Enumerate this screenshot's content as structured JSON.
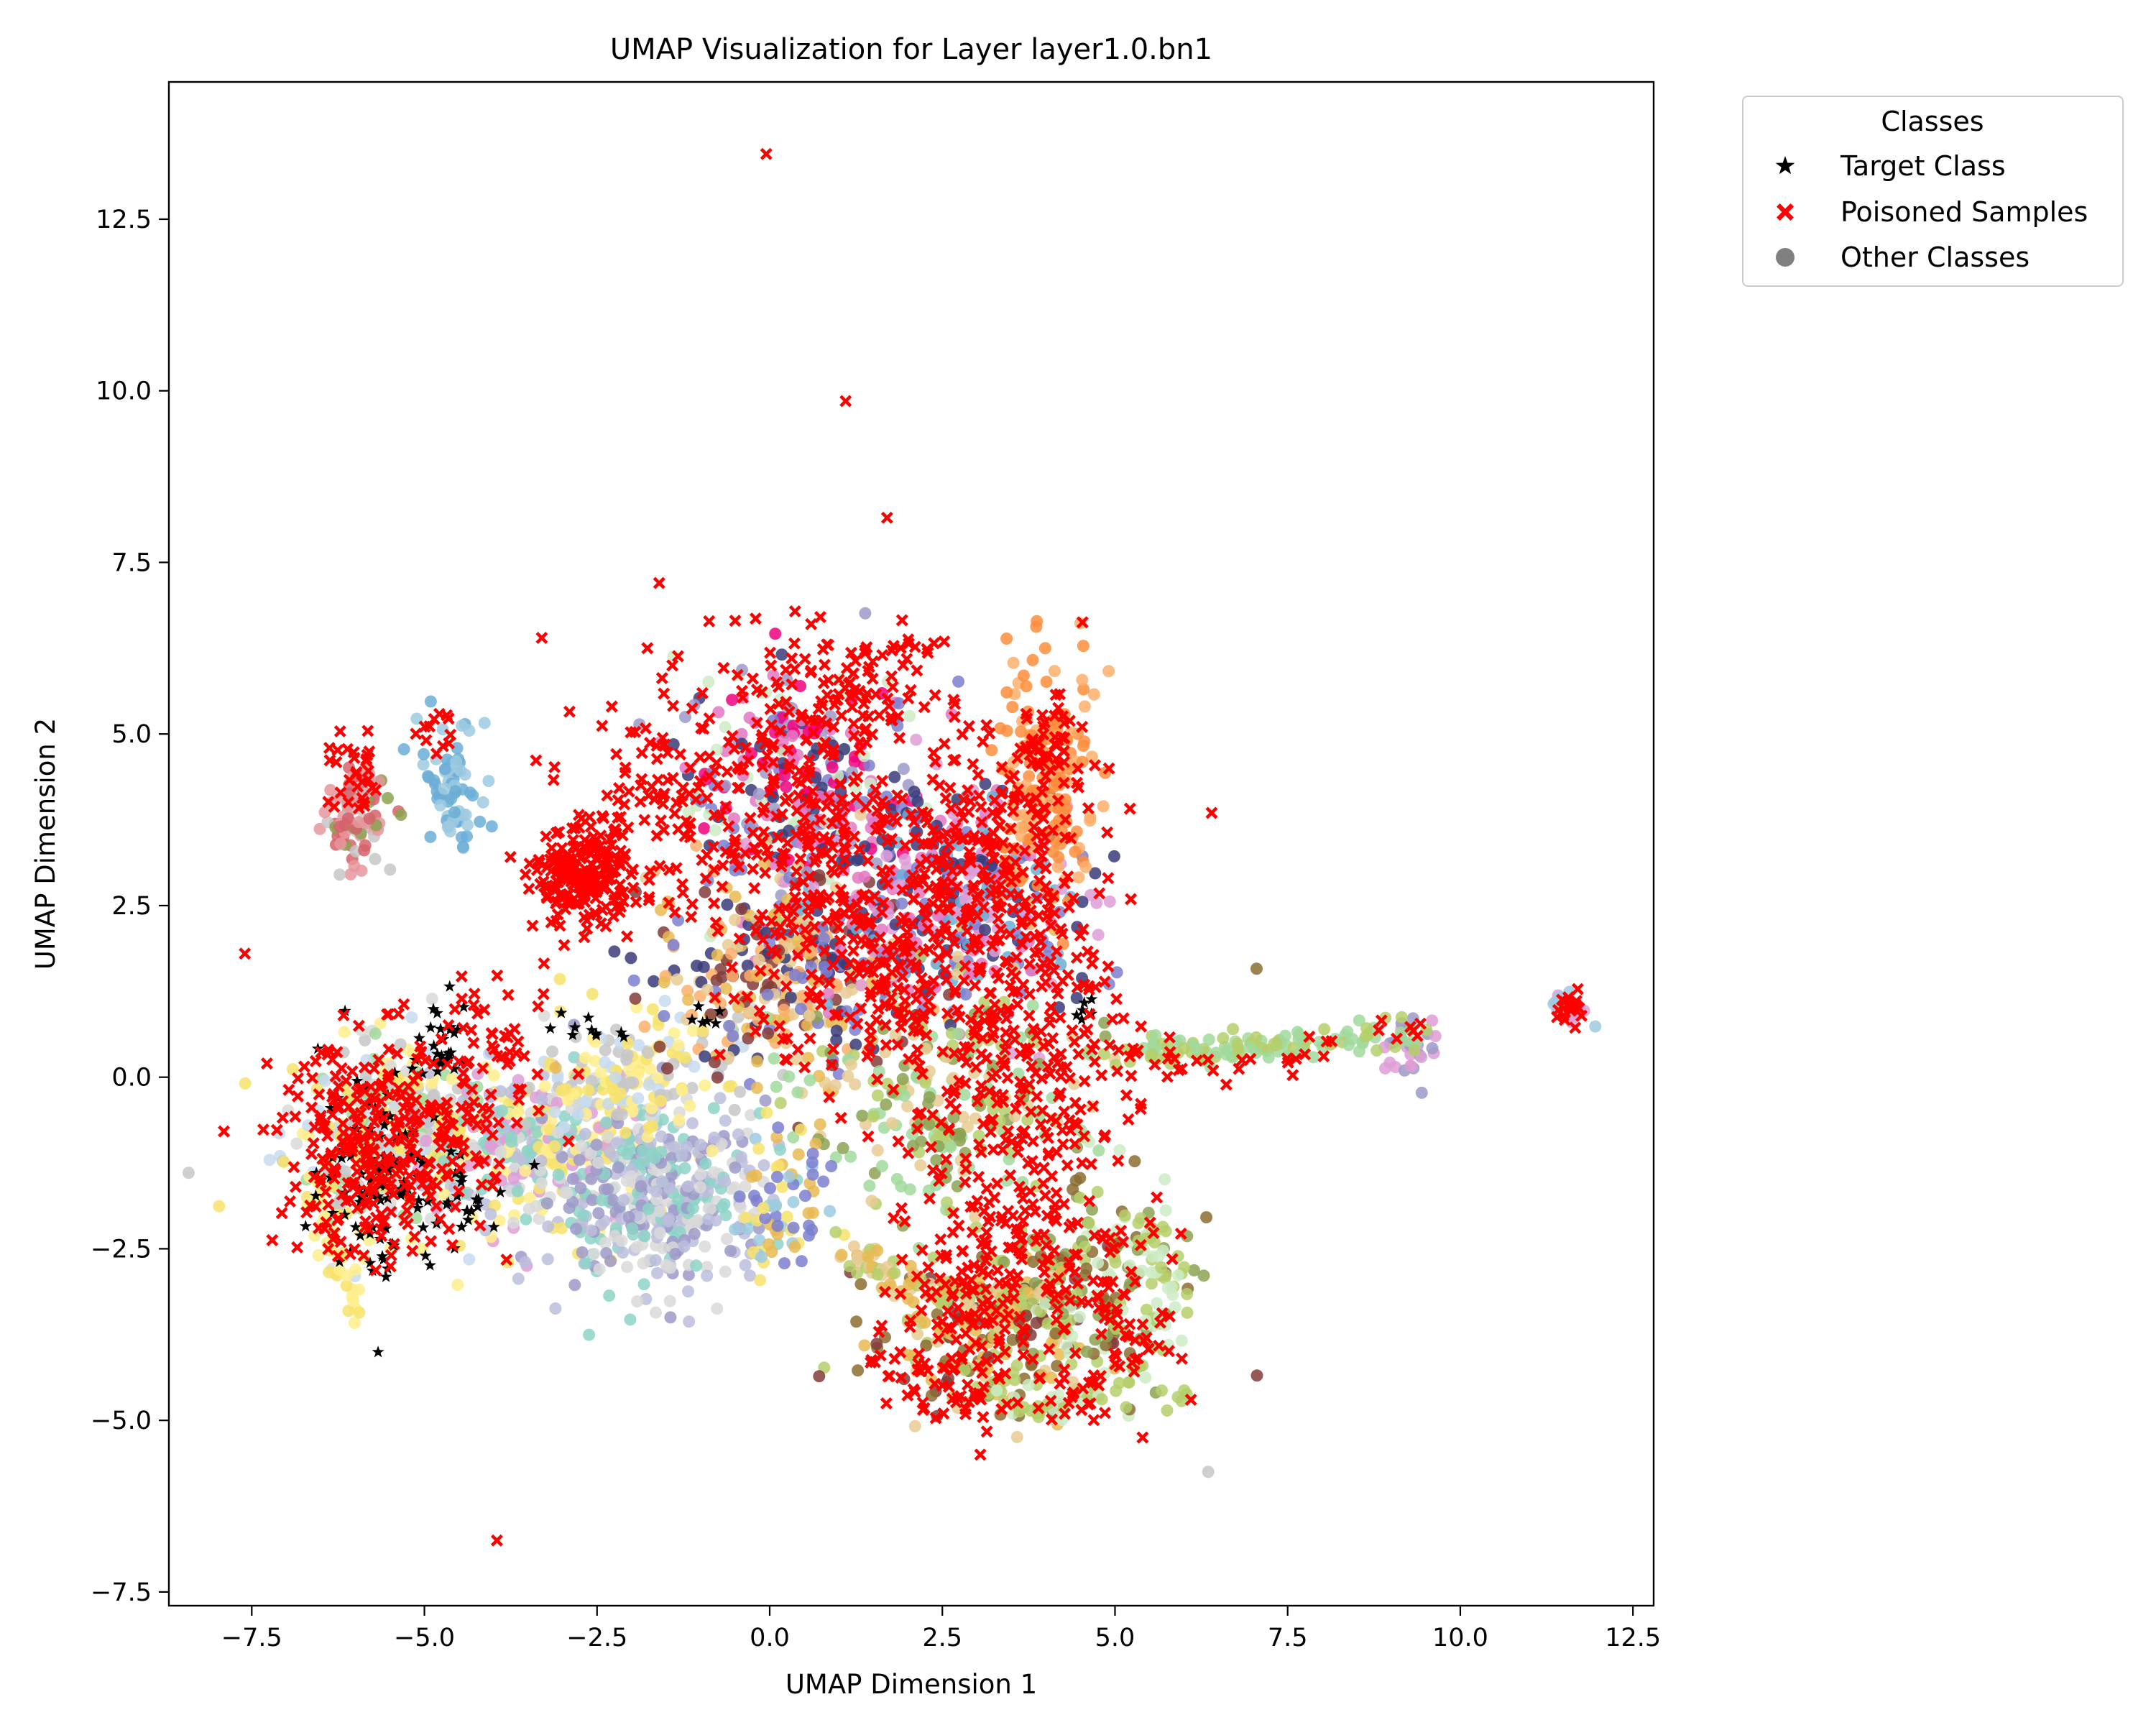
{
  "chart_data": {
    "type": "scatter",
    "title": "UMAP Visualization for Layer layer1.0.bn1",
    "xlabel": "UMAP Dimension 1",
    "ylabel": "UMAP Dimension 2",
    "xlim": [
      -8.7,
      12.8
    ],
    "ylim": [
      -7.7,
      14.5
    ],
    "xticks": [
      -7.5,
      -5.0,
      -2.5,
      0.0,
      2.5,
      5.0,
      7.5,
      10.0,
      12.5
    ],
    "xtick_labels": [
      "−7.5",
      "−5.0",
      "−2.5",
      "0.0",
      "2.5",
      "5.0",
      "7.5",
      "10.0",
      "12.5"
    ],
    "yticks": [
      -7.5,
      -5.0,
      -2.5,
      0.0,
      2.5,
      5.0,
      7.5,
      10.0,
      12.5
    ],
    "ytick_labels": [
      "−7.5",
      "−5.0",
      "−2.5",
      "0.0",
      "2.5",
      "5.0",
      "7.5",
      "10.0",
      "12.5"
    ],
    "grid": false,
    "legend": {
      "title": "Classes",
      "placement": "outside-upper-right",
      "entries": [
        {
          "label": "Target Class",
          "marker": "star",
          "color": "#000000"
        },
        {
          "label": "Poisoned Samples",
          "marker": "x",
          "color": "#ff0000"
        },
        {
          "label": "Other Classes",
          "marker": "circle",
          "color": "#808080"
        }
      ]
    },
    "colors": {
      "target": "#000000",
      "poisoned": "#ff0000",
      "other_palette": [
        "#9ecae1",
        "#6baed6",
        "#fdae6b",
        "#fd8d3c",
        "#a1d99b",
        "#b5cf6b",
        "#8ca252",
        "#bcbddc",
        "#9e9ac8",
        "#7b7fd0",
        "#393b79",
        "#e7ba52",
        "#e7cb94",
        "#8c6d31",
        "#843c39",
        "#d6616b",
        "#e7969c",
        "#f7e36b",
        "#ffed8b",
        "#c6dbef",
        "#c7c7c7",
        "#8dd3c7",
        "#e377c2",
        "#f0027f",
        "#de9ed6",
        "#c49c94",
        "#d9d9d9",
        "#ccebc5"
      ]
    },
    "series": [
      {
        "name": "Other Classes",
        "clusters": [
          {
            "x": -6.0,
            "y": 3.8,
            "sx": 0.25,
            "sy": 0.35,
            "n": 90,
            "colors": [
              15,
              16,
              6,
              20
            ]
          },
          {
            "x": -4.6,
            "y": 4.2,
            "sx": 0.2,
            "sy": 0.5,
            "n": 70,
            "colors": [
              0,
              1
            ]
          },
          {
            "x": -5.6,
            "y": -0.8,
            "sx": 0.7,
            "sy": 0.7,
            "n": 260,
            "colors": [
              17,
              18,
              19,
              4,
              20,
              26
            ]
          },
          {
            "x": -3.5,
            "y": -1.0,
            "sx": 0.9,
            "sy": 0.6,
            "n": 330,
            "colors": [
              7,
              21,
              17,
              18,
              26,
              24
            ]
          },
          {
            "x": -1.6,
            "y": -1.7,
            "sx": 0.8,
            "sy": 0.7,
            "n": 420,
            "colors": [
              7,
              8,
              21,
              26
            ]
          },
          {
            "x": -2.0,
            "y": 0.0,
            "sx": 0.7,
            "sy": 0.5,
            "n": 160,
            "colors": [
              17,
              18,
              19,
              20
            ]
          },
          {
            "x": 0.5,
            "y": 4.2,
            "sx": 0.9,
            "sy": 0.9,
            "n": 260,
            "colors": [
              9,
              10,
              22,
              23,
              8,
              27
            ]
          },
          {
            "x": 0.3,
            "y": 1.5,
            "sx": 1.0,
            "sy": 0.8,
            "n": 320,
            "colors": [
              11,
              12,
              2,
              9,
              10,
              14
            ]
          },
          {
            "x": 2.6,
            "y": 2.6,
            "sx": 1.0,
            "sy": 0.9,
            "n": 320,
            "colors": [
              9,
              10,
              22,
              24,
              1
            ]
          },
          {
            "x": 4.0,
            "y": 4.2,
            "sx": 0.4,
            "sy": 0.9,
            "n": 160,
            "colors": [
              2,
              3
            ]
          },
          {
            "x": 2.5,
            "y": -0.3,
            "sx": 1.0,
            "sy": 0.8,
            "n": 220,
            "colors": [
              5,
              6,
              4,
              12
            ]
          },
          {
            "x": 3.2,
            "y": -3.8,
            "sx": 0.9,
            "sy": 0.6,
            "n": 200,
            "colors": [
              11,
              12,
              13,
              14,
              5
            ]
          },
          {
            "x": 4.8,
            "y": -3.0,
            "sx": 0.7,
            "sy": 0.8,
            "n": 150,
            "colors": [
              5,
              6,
              27,
              13
            ]
          },
          {
            "x": 0.2,
            "y": -1.8,
            "sx": 0.3,
            "sy": 0.6,
            "n": 70,
            "colors": [
              9,
              0,
              11,
              17
            ]
          },
          {
            "x": 9.3,
            "y": 0.4,
            "sx": 0.2,
            "sy": 0.25,
            "n": 30,
            "colors": [
              24,
              8
            ]
          },
          {
            "x": 11.6,
            "y": 1.0,
            "sx": 0.15,
            "sy": 0.15,
            "n": 20,
            "colors": [
              24,
              0
            ]
          }
        ],
        "trails": [
          {
            "points": [
              [
                5.0,
                0.4
              ],
              [
                6.5,
                0.35
              ],
              [
                8.0,
                0.5
              ],
              [
                9.5,
                0.7
              ]
            ],
            "n": 110,
            "colors": [
              4,
              5
            ]
          },
          {
            "points": [
              [
                1.0,
                -2.5
              ],
              [
                2.0,
                -3.0
              ],
              [
                3.0,
                -3.3
              ],
              [
                4.2,
                -3.0
              ]
            ],
            "n": 90,
            "colors": [
              12,
              11,
              5
            ]
          },
          {
            "points": [
              [
                3.2,
                -4.5
              ],
              [
                4.2,
                -4.9
              ],
              [
                5.5,
                -4.2
              ],
              [
                5.8,
                -3.0
              ],
              [
                5.2,
                -2.0
              ]
            ],
            "n": 90,
            "colors": [
              5,
              27
            ]
          },
          {
            "points": [
              [
                -6.6,
                -1.4
              ],
              [
                -6.3,
                -2.6
              ],
              [
                -5.9,
                -3.6
              ]
            ],
            "n": 40,
            "colors": [
              18,
              17
            ]
          },
          {
            "points": [
              [
                5.8,
                -4.6
              ],
              [
                6.1,
                -4.7
              ]
            ],
            "n": 6,
            "colors": [
              5
            ]
          }
        ],
        "singletons": [
          {
            "x": 7.05,
            "y": 1.58,
            "color": 13
          },
          {
            "x": 6.35,
            "y": -5.75,
            "color": 20
          },
          {
            "x": -1.58,
            "y": 4.88,
            "color": 24
          }
        ]
      },
      {
        "name": "Target Class",
        "clusters": [
          {
            "x": -5.7,
            "y": -1.3,
            "sx": 0.4,
            "sy": 0.8,
            "n": 90
          },
          {
            "x": -4.7,
            "y": 0.5,
            "sx": 0.2,
            "sy": 0.3,
            "n": 30
          },
          {
            "x": -4.4,
            "y": -1.8,
            "sx": 0.4,
            "sy": 0.3,
            "n": 25
          },
          {
            "x": -2.5,
            "y": 0.7,
            "sx": 0.25,
            "sy": 0.15,
            "n": 10
          },
          {
            "x": -1.0,
            "y": 0.9,
            "sx": 0.15,
            "sy": 0.1,
            "n": 6
          },
          {
            "x": 4.6,
            "y": 0.9,
            "sx": 0.1,
            "sy": 0.15,
            "n": 6
          }
        ],
        "singletons": []
      },
      {
        "name": "Poisoned Samples",
        "clusters": [
          {
            "x": -2.7,
            "y": 2.9,
            "sx": 0.35,
            "sy": 0.35,
            "n": 220
          },
          {
            "x": -1.6,
            "y": 4.0,
            "sx": 0.6,
            "sy": 0.8,
            "n": 90
          },
          {
            "x": -5.6,
            "y": -1.0,
            "sx": 0.75,
            "sy": 0.8,
            "n": 300
          },
          {
            "x": -4.0,
            "y": 0.2,
            "sx": 0.5,
            "sy": 0.6,
            "n": 60
          },
          {
            "x": -6.0,
            "y": 4.3,
            "sx": 0.2,
            "sy": 0.3,
            "n": 30
          },
          {
            "x": -4.8,
            "y": 5.0,
            "sx": 0.3,
            "sy": 0.2,
            "n": 12
          },
          {
            "x": 0.8,
            "y": 5.5,
            "sx": 0.9,
            "sy": 0.5,
            "n": 130
          },
          {
            "x": 0.3,
            "y": 3.6,
            "sx": 0.8,
            "sy": 0.8,
            "n": 160
          },
          {
            "x": 1.8,
            "y": 1.6,
            "sx": 1.1,
            "sy": 0.9,
            "n": 240
          },
          {
            "x": 3.0,
            "y": 3.2,
            "sx": 0.8,
            "sy": 0.8,
            "n": 200
          },
          {
            "x": 4.0,
            "y": 4.6,
            "sx": 0.35,
            "sy": 0.5,
            "n": 60
          },
          {
            "x": 3.6,
            "y": 0.2,
            "sx": 0.8,
            "sy": 1.1,
            "n": 230
          },
          {
            "x": 3.3,
            "y": -2.6,
            "sx": 0.6,
            "sy": 0.8,
            "n": 160
          },
          {
            "x": 2.8,
            "y": -4.3,
            "sx": 0.8,
            "sy": 0.4,
            "n": 80
          },
          {
            "x": 5.0,
            "y": -3.2,
            "sx": 0.5,
            "sy": 0.7,
            "n": 60
          },
          {
            "x": 11.6,
            "y": 1.0,
            "sx": 0.12,
            "sy": 0.12,
            "n": 22
          }
        ],
        "trails": [
          {
            "points": [
              [
                5.0,
                0.3
              ],
              [
                6.5,
                0.1
              ],
              [
                8.0,
                0.4
              ],
              [
                9.5,
                0.7
              ]
            ],
            "n": 35
          },
          {
            "points": [
              [
                3.8,
                -4.9
              ],
              [
                4.8,
                -4.6
              ],
              [
                5.5,
                -3.5
              ]
            ],
            "n": 25
          },
          {
            "points": [
              [
                1.2,
                6.1
              ],
              [
                2.0,
                6.2
              ],
              [
                2.4,
                6.2
              ]
            ],
            "n": 12
          }
        ],
        "singletons": [
          {
            "x": -0.05,
            "y": 13.45
          },
          {
            "x": 1.1,
            "y": 9.85
          },
          {
            "x": 1.7,
            "y": 8.15
          },
          {
            "x": -1.6,
            "y": 7.2
          },
          {
            "x": -3.3,
            "y": 6.4
          },
          {
            "x": -7.6,
            "y": 1.8
          },
          {
            "x": -3.95,
            "y": -6.75
          },
          {
            "x": 6.4,
            "y": 3.85
          },
          {
            "x": 3.05,
            "y": -5.5
          },
          {
            "x": 5.4,
            "y": -5.25
          },
          {
            "x": 6.1,
            "y": -4.7
          },
          {
            "x": 4.9,
            "y": 2.9
          },
          {
            "x": -0.5,
            "y": 6.65
          },
          {
            "x": 0.6,
            "y": 6.6
          }
        ]
      }
    ]
  }
}
